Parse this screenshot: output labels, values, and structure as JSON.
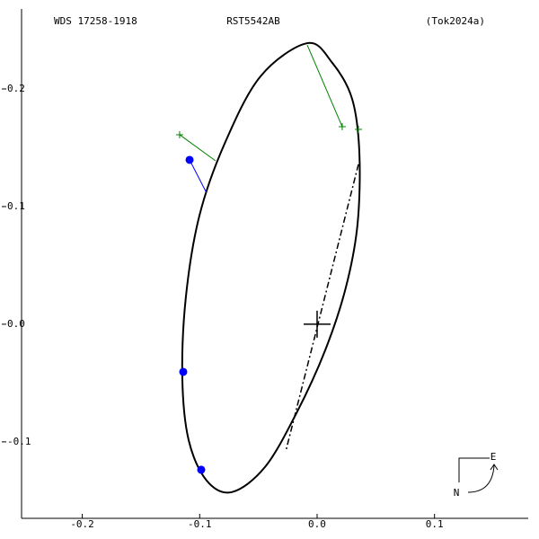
{
  "chart_data": {
    "type": "orbit",
    "header": [
      "WDS 17258-1918",
      "RST5542AB",
      "(Tok2024a)"
    ],
    "xlim": [
      -0.2517,
      0.1798
    ],
    "ylim": [
      -0.165,
      0.2756
    ],
    "xticks": [
      -0.2,
      -0.1,
      {
        "value": 0,
        "label": "0.0"
      },
      0.1
    ],
    "yticks": [
      0.2,
      0.1,
      {
        "value": 0,
        "label": "0.0"
      },
      -0.1
    ],
    "series": [
      {
        "style": "curve",
        "color": "#000000",
        "x": [
          -0.0084,
          0.013,
          0.0298,
          0.036,
          0.0344,
          0.0245,
          0.0069,
          -0.0176,
          -0.0444,
          -0.0727,
          -0.0941,
          -0.1094,
          -0.1148,
          -0.1117,
          -0.1002,
          -0.0788,
          -0.0482
        ],
        "y": [
          0.2389,
          0.2221,
          0.1916,
          0.1458,
          0.0847,
          0.0313,
          -0.0221,
          -0.0756,
          -0.1214,
          -0.1427,
          -0.1328,
          -0.0985,
          -0.045,
          0.0237,
          0.0924,
          0.1534,
          0.2107
        ]
      },
      {
        "style": "dashdot",
        "color": "#000000",
        "x": [
          0.0352,
          -0.0268
        ],
        "y": [
          0.1359,
          -0.1084
        ]
      },
      {
        "style": "line",
        "color": "#0000ff",
        "x": [
          -0.1086,
          -0.0941
        ],
        "y": [
          0.1397,
          0.1115
        ]
      },
      {
        "style": "line",
        "color": "#008000",
        "x": [
          -0.1171,
          -0.0865
        ],
        "y": [
          0.1611,
          0.1389
        ]
      },
      {
        "style": "line",
        "color": "#008000",
        "x": [
          0.0214,
          -0.0084
        ],
        "y": [
          0.1679,
          0.2374
        ]
      },
      {
        "style": "plus",
        "color": "#008000",
        "x": [
          -0.1171,
          0.0214,
          0.0352
        ],
        "y": [
          0.1611,
          0.1679,
          0.1656
        ]
      },
      {
        "style": "dot",
        "color": "#0000ff",
        "x": [
          -0.1086,
          -0.114,
          -0.0987
        ],
        "y": [
          0.1397,
          -0.0405,
          -0.1237
        ]
      },
      {
        "style": "center",
        "color": "#000000",
        "x": [
          0
        ],
        "y": [
          0
        ]
      }
    ],
    "compass": {
      "east": "E",
      "north": "N"
    }
  }
}
